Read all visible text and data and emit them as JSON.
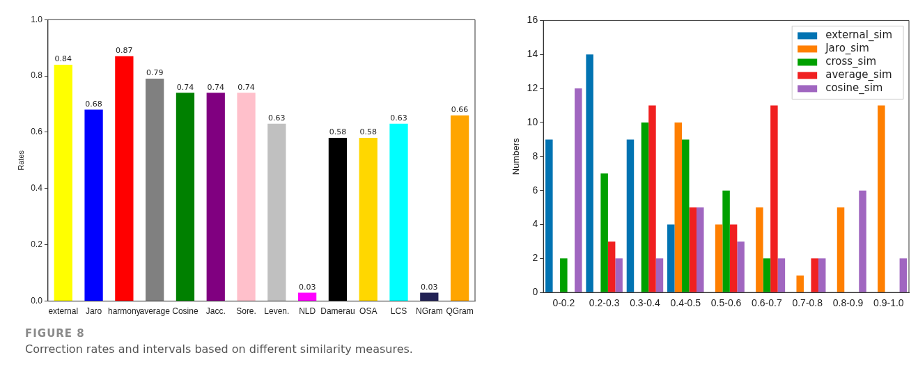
{
  "chart_data": [
    {
      "type": "bar",
      "ylabel": "Rates",
      "categories": [
        "external",
        "Jaro",
        "harmony",
        "average",
        "Cosine",
        "Jacc.",
        "Sore.",
        "Leven.",
        "NLD",
        "Damerau",
        "OSA",
        "LCS",
        "NGram",
        "QGram"
      ],
      "values": [
        0.84,
        0.68,
        0.87,
        0.79,
        0.74,
        0.74,
        0.74,
        0.63,
        0.03,
        0.58,
        0.58,
        0.63,
        0.03,
        0.66
      ],
      "colors": [
        "#ffff00",
        "#0000ff",
        "#ff0000",
        "#808080",
        "#008000",
        "#800080",
        "#ffc0cb",
        "#c0c0c0",
        "#ff00ff",
        "#000000",
        "#ffd700",
        "#00ffff",
        "#222255",
        "#ffa500"
      ],
      "ylim": [
        0,
        1
      ],
      "yticks": [
        {
          "value": 0,
          "label": "0.0"
        },
        0.2,
        0.4,
        0.6,
        0.8,
        {
          "value": 1,
          "label": "1.0"
        }
      ],
      "data_labels": true,
      "grid": false,
      "legend": false,
      "annotations": [
        "FIGURE 8",
        "Correction rates and intervals based on different similarity measures."
      ]
    },
    {
      "type": "bar",
      "ylabel": "Numbers",
      "categories": [
        "0-0.2",
        "0.2-0.3",
        "0.3-0.4",
        "0.4-0.5",
        "0.5-0.6",
        "0.6-0.7",
        "0.7-0.8",
        "0.8-0.9",
        "0.9-1.0"
      ],
      "series": [
        {
          "name": "external_sim",
          "color": "#0173b2",
          "values": [
            9,
            14,
            9,
            4,
            0,
            0,
            0,
            0,
            0
          ]
        },
        {
          "name": "Jaro_sim",
          "color": "#ff7f00",
          "values": [
            0,
            0,
            0,
            10,
            4,
            5,
            1,
            5,
            11
          ]
        },
        {
          "name": "cross_sim",
          "color": "#00a000",
          "values": [
            2,
            7,
            10,
            9,
            6,
            2,
            0,
            0,
            0
          ]
        },
        {
          "name": "average_sim",
          "color": "#f02020",
          "values": [
            0,
            3,
            11,
            5,
            4,
            11,
            2,
            0,
            0
          ]
        },
        {
          "name": "cosine_sim",
          "color": "#a066c0",
          "values": [
            12,
            2,
            2,
            5,
            3,
            2,
            2,
            6,
            2
          ]
        }
      ],
      "ylim": [
        0,
        16
      ],
      "yticks": [
        0,
        2,
        4,
        6,
        8,
        10,
        12,
        14,
        16
      ],
      "grid": false,
      "legend": "top right"
    }
  ]
}
